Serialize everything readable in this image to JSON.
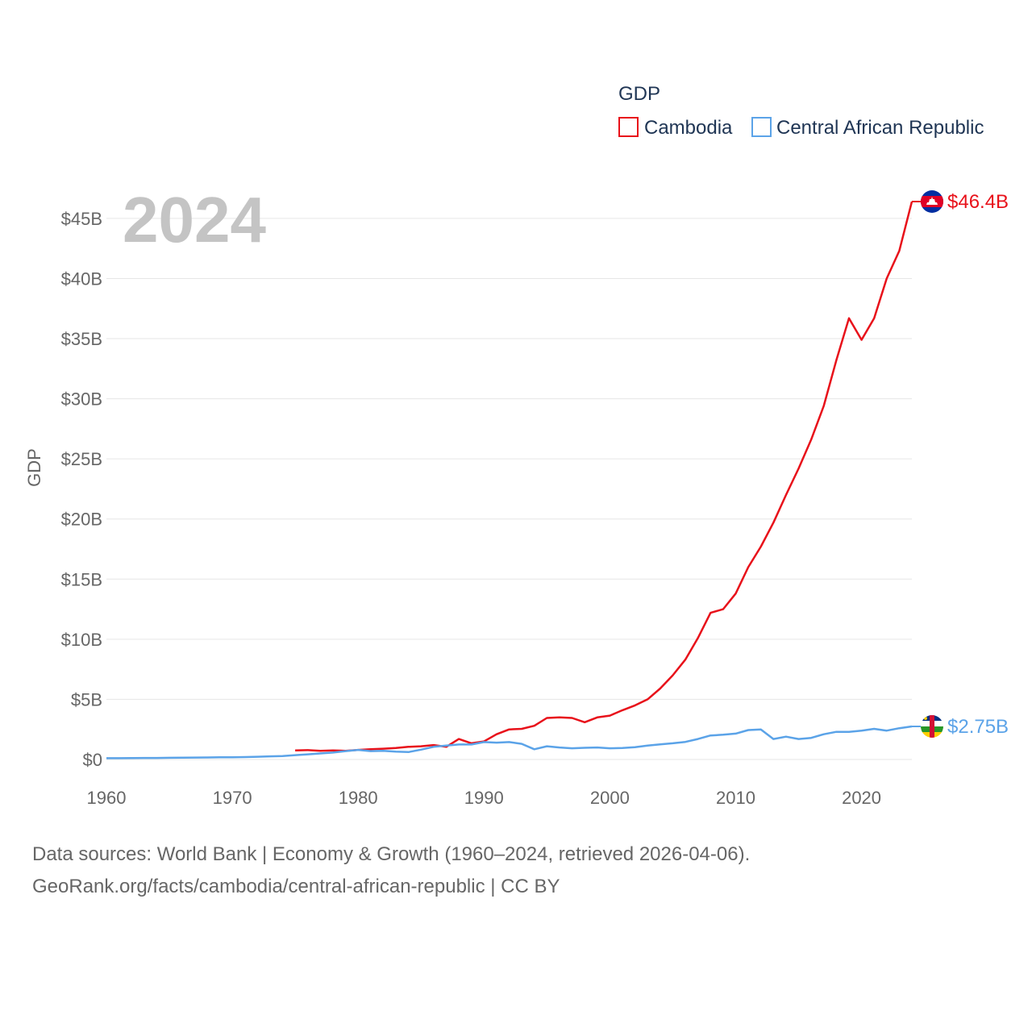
{
  "chart_data": {
    "type": "line",
    "title": "GDP",
    "year_label": "2024",
    "ylabel": "GDP",
    "xlabel": "",
    "xlim": [
      1960,
      2024
    ],
    "ylim": [
      0,
      46.4
    ],
    "x_ticks": [
      1960,
      1970,
      1980,
      1990,
      2000,
      2010,
      2020
    ],
    "y_ticks": [
      {
        "value": 0,
        "label": "$0"
      },
      {
        "value": 5,
        "label": "$5B"
      },
      {
        "value": 10,
        "label": "$10B"
      },
      {
        "value": 15,
        "label": "$15B"
      },
      {
        "value": 20,
        "label": "$20B"
      },
      {
        "value": 25,
        "label": "$25B"
      },
      {
        "value": 30,
        "label": "$30B"
      },
      {
        "value": 35,
        "label": "$35B"
      },
      {
        "value": 40,
        "label": "$40B"
      },
      {
        "value": 45,
        "label": "$45B"
      }
    ],
    "grid": true,
    "legend_position": "top-right",
    "series": [
      {
        "name": "Cambodia",
        "color": "#e8111a",
        "end_label": "$46.4B",
        "flag": "cambodia-flag",
        "x": [
          1975,
          1976,
          1977,
          1978,
          1979,
          1980,
          1981,
          1982,
          1983,
          1984,
          1985,
          1986,
          1987,
          1988,
          1989,
          1990,
          1991,
          1992,
          1993,
          1994,
          1995,
          1996,
          1997,
          1998,
          1999,
          2000,
          2001,
          2002,
          2003,
          2004,
          2005,
          2006,
          2007,
          2008,
          2009,
          2010,
          2011,
          2012,
          2013,
          2014,
          2015,
          2016,
          2017,
          2018,
          2019,
          2020,
          2021,
          2022,
          2023,
          2024
        ],
        "values": [
          0.75,
          0.78,
          0.72,
          0.75,
          0.72,
          0.8,
          0.85,
          0.9,
          0.95,
          1.05,
          1.1,
          1.2,
          1.05,
          1.7,
          1.35,
          1.5,
          2.1,
          2.5,
          2.55,
          2.8,
          3.45,
          3.5,
          3.45,
          3.1,
          3.5,
          3.65,
          4.1,
          4.5,
          5.0,
          5.9,
          7.0,
          8.3,
          10.1,
          12.2,
          12.5,
          13.8,
          16.0,
          17.7,
          19.7,
          22.0,
          24.2,
          26.6,
          29.4,
          33.2,
          36.7,
          34.9,
          36.7,
          40.0,
          42.3,
          46.4
        ]
      },
      {
        "name": "Central African Republic",
        "color": "#5ba3e8",
        "end_label": "$2.75B",
        "flag": "central-african-republic-flag",
        "x": [
          1960,
          1961,
          1962,
          1963,
          1964,
          1965,
          1966,
          1967,
          1968,
          1969,
          1970,
          1971,
          1972,
          1973,
          1974,
          1975,
          1976,
          1977,
          1978,
          1979,
          1980,
          1981,
          1982,
          1983,
          1984,
          1985,
          1986,
          1987,
          1988,
          1989,
          1990,
          1991,
          1992,
          1993,
          1994,
          1995,
          1996,
          1997,
          1998,
          1999,
          2000,
          2001,
          2002,
          2003,
          2004,
          2005,
          2006,
          2007,
          2008,
          2009,
          2010,
          2011,
          2012,
          2013,
          2014,
          2015,
          2016,
          2017,
          2018,
          2019,
          2020,
          2021,
          2022,
          2023,
          2024
        ],
        "values": [
          0.11,
          0.11,
          0.12,
          0.13,
          0.13,
          0.14,
          0.15,
          0.16,
          0.17,
          0.18,
          0.19,
          0.2,
          0.23,
          0.26,
          0.28,
          0.36,
          0.43,
          0.5,
          0.58,
          0.7,
          0.8,
          0.7,
          0.72,
          0.65,
          0.62,
          0.82,
          1.05,
          1.15,
          1.25,
          1.25,
          1.45,
          1.4,
          1.45,
          1.3,
          0.85,
          1.1,
          1.0,
          0.93,
          0.97,
          1.0,
          0.93,
          0.95,
          1.02,
          1.15,
          1.26,
          1.35,
          1.46,
          1.7,
          2.0,
          2.06,
          2.15,
          2.45,
          2.5,
          1.7,
          1.9,
          1.7,
          1.8,
          2.1,
          2.3,
          2.3,
          2.4,
          2.55,
          2.4,
          2.6,
          2.75
        ]
      }
    ]
  },
  "legend": {
    "title": "GDP",
    "items": [
      {
        "label": "Cambodia",
        "color": "#e8111a"
      },
      {
        "label": "Central African Republic",
        "color": "#5ba3e8"
      }
    ]
  },
  "footer": {
    "line1": "Data sources: World Bank | Economy & Growth (1960–2024, retrieved 2026-04-06).",
    "line2": "GeoRank.org/facts/cambodia/central-african-republic | CC BY"
  }
}
